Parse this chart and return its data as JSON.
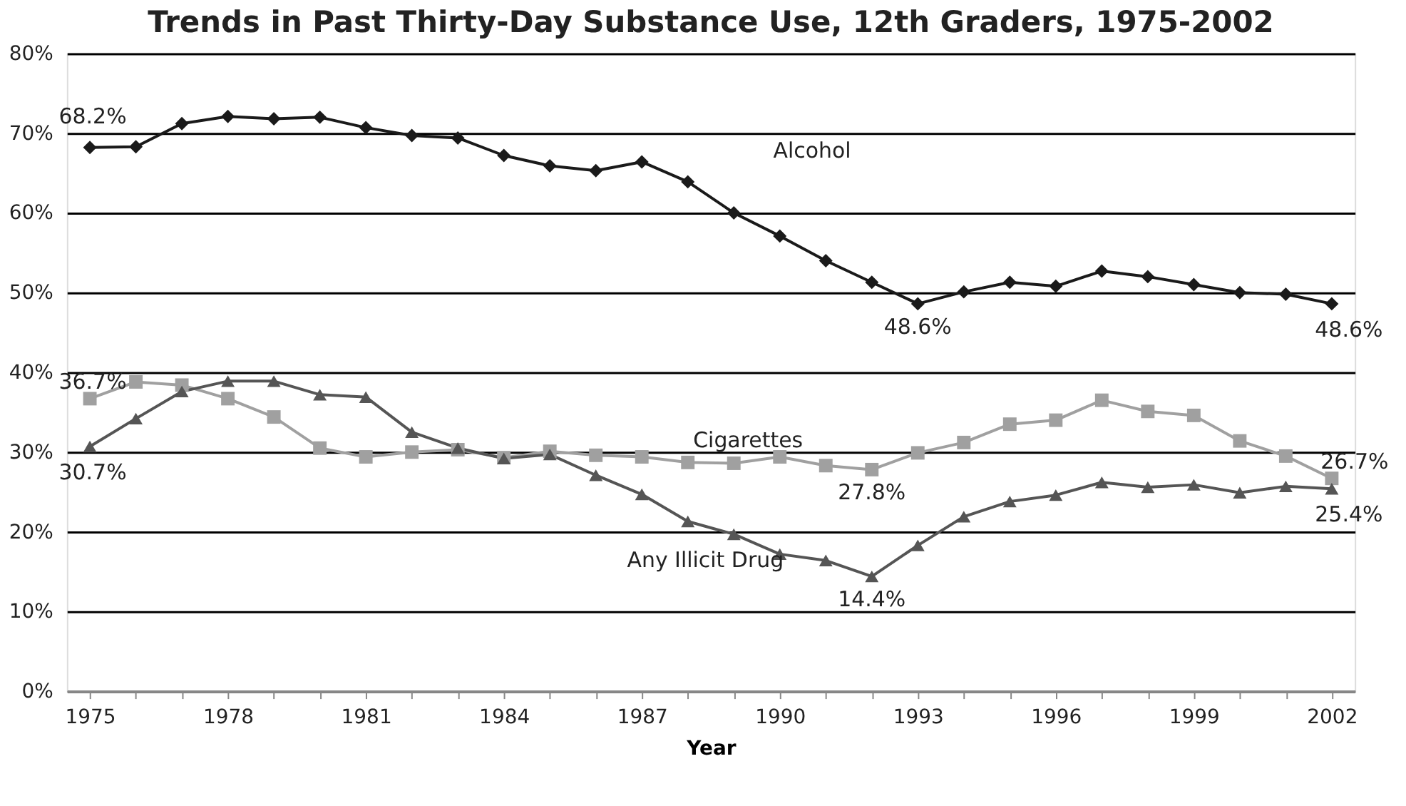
{
  "chart_data": {
    "type": "line",
    "title": "Trends in Past Thirty-Day Substance Use, 12th Graders, 1975-2002",
    "xlabel": "Year",
    "x": [
      1975,
      1976,
      1977,
      1978,
      1979,
      1980,
      1981,
      1982,
      1983,
      1984,
      1985,
      1986,
      1987,
      1988,
      1989,
      1990,
      1991,
      1992,
      1993,
      1994,
      1995,
      1996,
      1997,
      1998,
      1999,
      2000,
      2001,
      2002
    ],
    "series": [
      {
        "name": "Alcohol",
        "color": "#1a1a1a",
        "marker": "diamond",
        "values": [
          68.2,
          68.3,
          71.2,
          72.1,
          71.8,
          72.0,
          70.7,
          69.7,
          69.4,
          67.2,
          65.9,
          65.3,
          66.4,
          63.9,
          60.0,
          57.1,
          54.0,
          51.3,
          48.6,
          50.1,
          51.3,
          50.8,
          52.7,
          52.0,
          51.0,
          50.0,
          49.8,
          48.6
        ],
        "value_labels": [
          "68.2%",
          null,
          null,
          null,
          null,
          null,
          null,
          null,
          null,
          null,
          null,
          null,
          null,
          null,
          null,
          null,
          null,
          null,
          "48.6%",
          null,
          null,
          null,
          null,
          null,
          null,
          null,
          null,
          "48.6%"
        ]
      },
      {
        "name": "Cigarettes",
        "color": "#a0a0a0",
        "marker": "square",
        "values": [
          36.7,
          38.8,
          38.4,
          36.7,
          34.4,
          30.5,
          29.4,
          30.0,
          30.3,
          29.3,
          30.1,
          29.6,
          29.4,
          28.7,
          28.6,
          29.4,
          28.3,
          27.8,
          29.9,
          31.2,
          33.5,
          34.0,
          36.5,
          35.1,
          34.6,
          31.4,
          29.5,
          26.7
        ],
        "value_labels": [
          "36.7%",
          null,
          null,
          null,
          null,
          null,
          null,
          null,
          null,
          null,
          null,
          null,
          null,
          null,
          null,
          null,
          null,
          "27.8%",
          null,
          null,
          null,
          null,
          null,
          null,
          null,
          null,
          null,
          "26.7%"
        ]
      },
      {
        "name": "Any Illicit Drug",
        "color": "#555555",
        "marker": "triangle",
        "values": [
          30.7,
          34.2,
          37.6,
          38.9,
          38.9,
          37.2,
          36.9,
          32.5,
          30.5,
          29.2,
          29.7,
          27.1,
          24.7,
          21.3,
          19.7,
          17.2,
          16.4,
          14.4,
          18.3,
          21.9,
          23.8,
          24.6,
          26.2,
          25.6,
          25.9,
          24.9,
          25.7,
          25.4
        ],
        "value_labels": [
          "30.7%",
          null,
          null,
          null,
          null,
          null,
          null,
          null,
          null,
          null,
          null,
          null,
          null,
          null,
          null,
          null,
          null,
          "14.4%",
          null,
          null,
          null,
          null,
          null,
          null,
          null,
          null,
          null,
          "25.4%"
        ]
      }
    ],
    "xlim": [
      1974.5,
      2002.5
    ],
    "xticks": [
      1975,
      {
        "value": 1976,
        "label": null
      },
      {
        "value": 1977,
        "label": null
      },
      1978,
      {
        "value": 1979,
        "label": null
      },
      {
        "value": 1980,
        "label": null
      },
      1981,
      {
        "value": 1982,
        "label": null
      },
      {
        "value": 1983,
        "label": null
      },
      1984,
      {
        "value": 1985,
        "label": null
      },
      {
        "value": 1986,
        "label": null
      },
      1987,
      {
        "value": 1988,
        "label": null
      },
      {
        "value": 1989,
        "label": null
      },
      1990,
      {
        "value": 1991,
        "label": null
      },
      {
        "value": 1992,
        "label": null
      },
      1993,
      {
        "value": 1994,
        "label": null
      },
      {
        "value": 1995,
        "label": null
      },
      1996,
      {
        "value": 1997,
        "label": null
      },
      {
        "value": 1998,
        "label": null
      },
      1999,
      {
        "value": 2000,
        "label": null
      },
      {
        "value": 2001,
        "label": null
      },
      2002
    ],
    "ylim": [
      0,
      80
    ],
    "yticks": [
      {
        "value": 0,
        "label": "0%"
      },
      {
        "value": 10,
        "label": "10%"
      },
      {
        "value": 20,
        "label": "20%"
      },
      {
        "value": 30,
        "label": "30%"
      },
      {
        "value": 40,
        "label": "40%"
      },
      {
        "value": 50,
        "label": "50%"
      },
      {
        "value": 60,
        "label": "60%"
      },
      {
        "value": 70,
        "label": "70%"
      },
      {
        "value": 80,
        "label": "80%"
      }
    ],
    "grid": "y",
    "line_style": "solid"
  }
}
